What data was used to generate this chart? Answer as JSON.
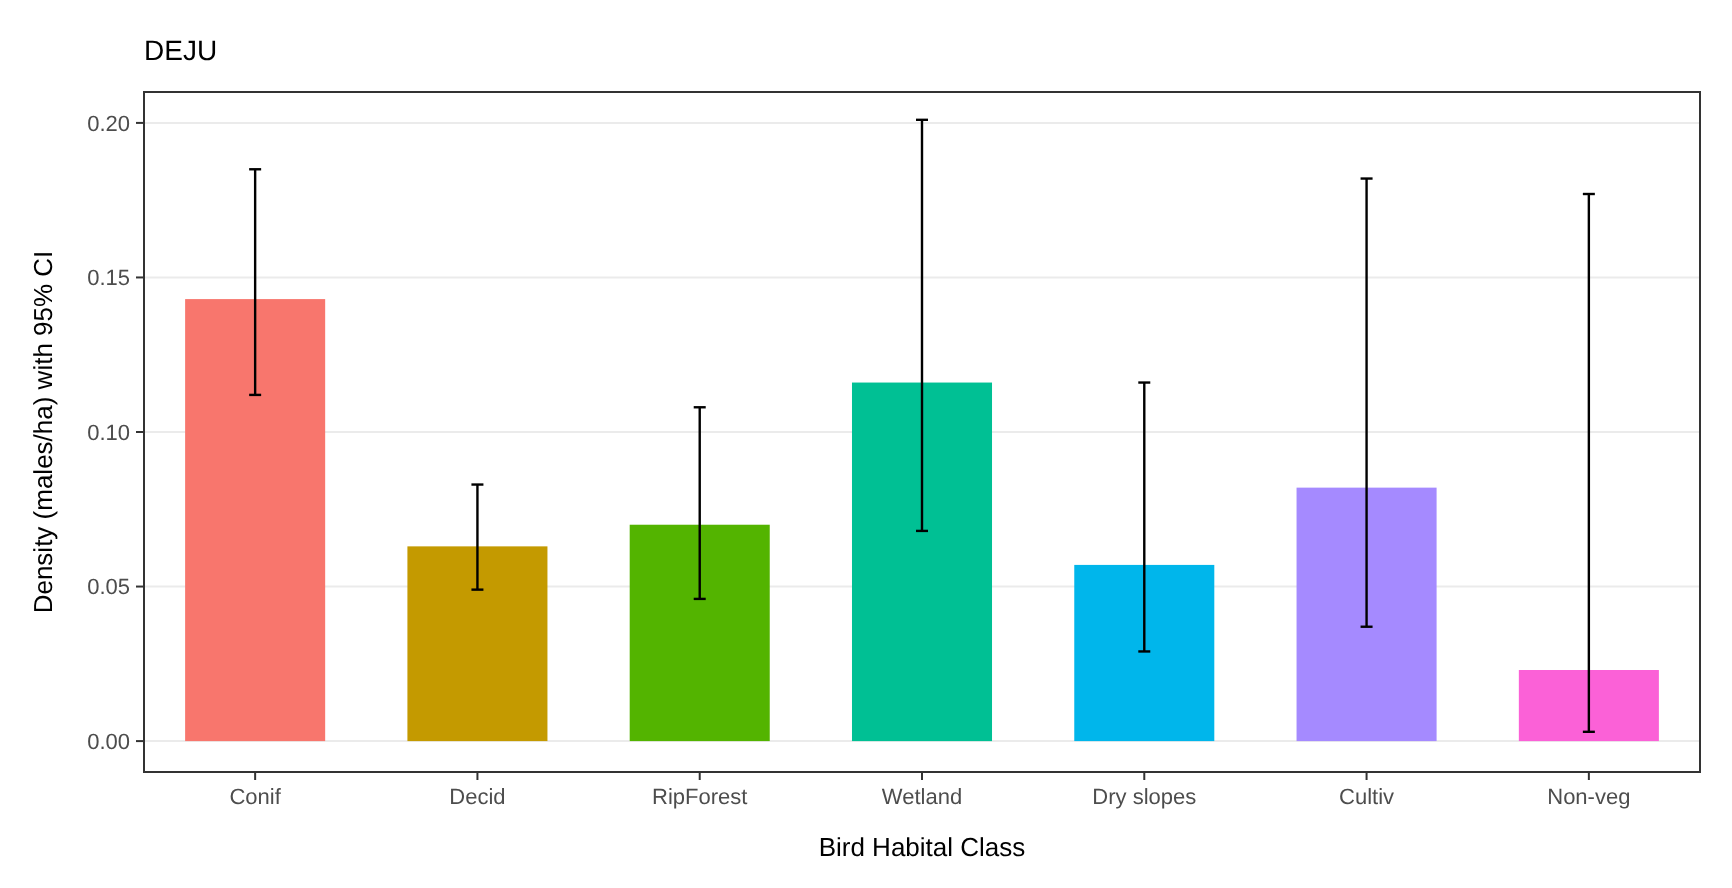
{
  "chart_data": {
    "type": "bar",
    "title": "DEJU",
    "xlabel": "Bird Habital Class",
    "ylabel": "Density (males/ha) with 95% CI",
    "categories": [
      "Conif",
      "Decid",
      "RipForest",
      "Wetland",
      "Dry slopes",
      "Cultiv",
      "Non-veg"
    ],
    "values": [
      0.143,
      0.063,
      0.07,
      0.116,
      0.057,
      0.082,
      0.023
    ],
    "colors": [
      "#f8766d",
      "#c49a00",
      "#53b400",
      "#00c094",
      "#00b6eb",
      "#a58aff",
      "#fb61d7"
    ],
    "errors": [
      [
        0.112,
        0.185
      ],
      [
        0.049,
        0.083
      ],
      [
        0.046,
        0.108
      ],
      [
        0.068,
        0.201
      ],
      [
        0.029,
        0.116
      ],
      [
        0.037,
        0.182
      ],
      [
        0.003,
        0.177
      ]
    ],
    "ylim": [
      -0.01,
      0.21
    ],
    "yticks": [
      {
        "value": 0,
        "label": "0.00"
      },
      {
        "value": 0.05,
        "label": "0.05"
      },
      {
        "value": 0.1,
        "label": "0.10"
      },
      {
        "value": 0.15,
        "label": "0.15"
      },
      {
        "value": 0.2,
        "label": "0.20"
      }
    ],
    "grid": "y"
  }
}
